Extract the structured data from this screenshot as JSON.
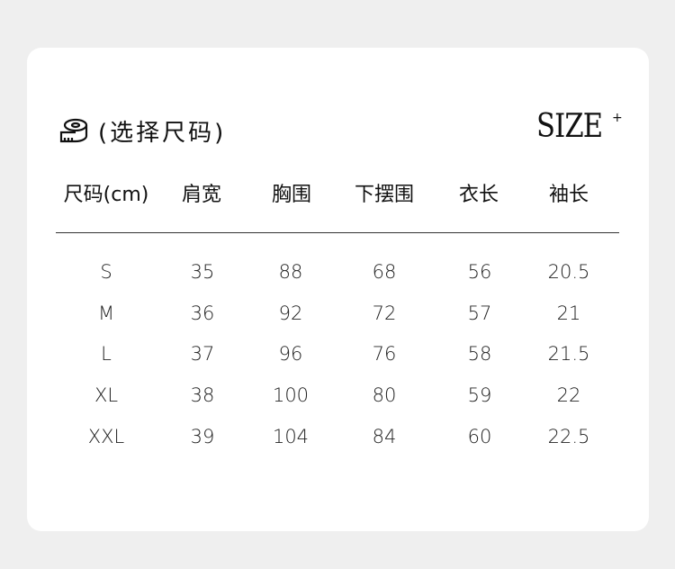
{
  "title": "(选择尺码)",
  "logo": "SIZE",
  "logo_mark": "+",
  "icon": "tape-measure-icon",
  "columns": [
    "尺码(cm)",
    "肩宽",
    "胸围",
    "下摆围",
    "衣长",
    "袖长"
  ],
  "rows": [
    [
      "S",
      "35",
      "88",
      "68",
      "56",
      "20.5"
    ],
    [
      "M",
      "36",
      "92",
      "72",
      "57",
      "21"
    ],
    [
      "L",
      "37",
      "96",
      "76",
      "58",
      "21.5"
    ],
    [
      "XL",
      "38",
      "100",
      "80",
      "59",
      "22"
    ],
    [
      "XXL",
      "39",
      "104",
      "84",
      "60",
      "22.5"
    ]
  ]
}
